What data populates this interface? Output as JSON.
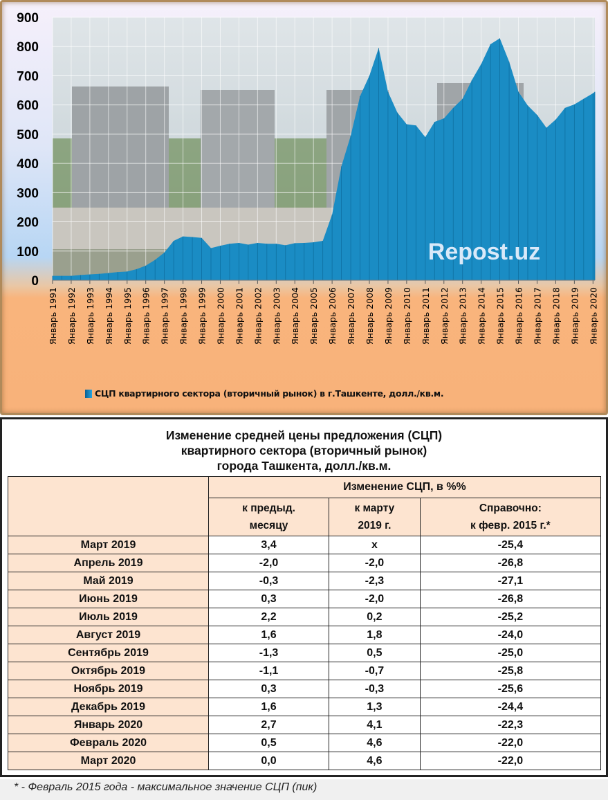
{
  "chart_data": {
    "type": "area",
    "title": "",
    "watermark": "Repost.uz",
    "legend": "СЦП квартирного  сектора (вторичный рынок) в г.Ташкенте, долл./кв.м.",
    "legend_position": "bottom",
    "ylim": [
      0,
      900
    ],
    "yticks": [
      0,
      100,
      200,
      300,
      400,
      500,
      600,
      700,
      800,
      900
    ],
    "xticks": [
      "Январь 1991",
      "Январь 1992",
      "Январь 1993",
      "Январь 1994",
      "Январь 1995",
      "Январь 1996",
      "Январь 1997",
      "Январь 1998",
      "Январь 1999",
      "Январь 2000",
      "Январь 2001",
      "Январь 2002",
      "Январь 2003",
      "Январь 2004",
      "Январь 2005",
      "Январь 2006",
      "Январь 2007",
      "Январь 2008",
      "Январь 2009",
      "Январь 2010",
      "Январь 2011",
      "Январь 2012",
      "Январь 2013",
      "Январь 2014",
      "Январь 2015",
      "Январь 2016",
      "Январь 2017",
      "Январь 2018",
      "Январь 2019",
      "Январь 2020"
    ],
    "grid": true,
    "series": [
      {
        "name": "СЦП квартирного сектора (вторичный рынок) в г.Ташкенте, долл./кв.м.",
        "color": "#1a8cc4",
        "x": [
          1991.0,
          1991.5,
          1992.0,
          1992.5,
          1993.0,
          1993.5,
          1994.0,
          1994.5,
          1995.0,
          1995.5,
          1996.0,
          1996.5,
          1997.0,
          1997.5,
          1998.0,
          1998.5,
          1999.0,
          1999.5,
          2000.0,
          2000.5,
          2001.0,
          2001.5,
          2002.0,
          2002.5,
          2003.0,
          2003.5,
          2004.0,
          2004.5,
          2005.0,
          2005.5,
          2006.0,
          2006.5,
          2007.0,
          2007.5,
          2008.0,
          2008.5,
          2009.0,
          2009.5,
          2010.0,
          2010.5,
          2011.0,
          2011.5,
          2012.0,
          2012.5,
          2013.0,
          2013.5,
          2014.0,
          2014.5,
          2015.0,
          2015.5,
          2016.0,
          2016.5,
          2017.0,
          2017.5,
          2018.0,
          2018.5,
          2019.0,
          2019.5,
          2020.0,
          2020.1
        ],
        "values": [
          15,
          15,
          15,
          18,
          20,
          22,
          25,
          28,
          30,
          38,
          50,
          70,
          95,
          135,
          150,
          148,
          145,
          110,
          118,
          125,
          128,
          122,
          128,
          125,
          125,
          120,
          127,
          128,
          130,
          135,
          225,
          390,
          495,
          630,
          700,
          795,
          645,
          574,
          534,
          530,
          490,
          542,
          554,
          590,
          621,
          685,
          740,
          808,
          828,
          748,
          645,
          598,
          566,
          522,
          550,
          590,
          602,
          621,
          640,
          645
        ]
      }
    ]
  },
  "table": {
    "title_lines": [
      "Изменение средней цены предложения (СЦП)",
      "квартирного сектора (вторичный рынок)",
      "города Ташкента, долл./кв.м."
    ],
    "group_header": "Изменение СЦП, в %%",
    "columns": [
      [
        "к предыд.",
        "месяцу"
      ],
      [
        "к марту",
        "2019 г."
      ],
      [
        "Справочно:",
        "к февр. 2015 г.*"
      ]
    ],
    "rows": [
      [
        "Март 2019",
        "3,4",
        "х",
        "-25,4"
      ],
      [
        "Апрель 2019",
        "-2,0",
        "-2,0",
        "-26,8"
      ],
      [
        "Май 2019",
        "-0,3",
        "-2,3",
        "-27,1"
      ],
      [
        "Июнь 2019",
        "0,3",
        "-2,0",
        "-26,8"
      ],
      [
        "Июль 2019",
        "2,2",
        "0,2",
        "-25,2"
      ],
      [
        "Август 2019",
        "1,6",
        "1,8",
        "-24,0"
      ],
      [
        "Сентябрь 2019",
        "-1,3",
        "0,5",
        "-25,0"
      ],
      [
        "Октябрь 2019",
        "-1,1",
        "-0,7",
        "-25,8"
      ],
      [
        "Ноябрь 2019",
        "0,3",
        "-0,3",
        "-25,6"
      ],
      [
        "Декабрь 2019",
        "1,6",
        "1,3",
        "-24,4"
      ],
      [
        "Январь 2020",
        "2,7",
        "4,1",
        "-22,3"
      ],
      [
        "Февраль 2020",
        "0,5",
        "4,6",
        "-22,0"
      ],
      [
        "Март 2020",
        "0,0",
        "4,6",
        "-22,0"
      ]
    ]
  },
  "footnote": "* - Февраль 2015 года - максимальное значение СЦП (пик)"
}
